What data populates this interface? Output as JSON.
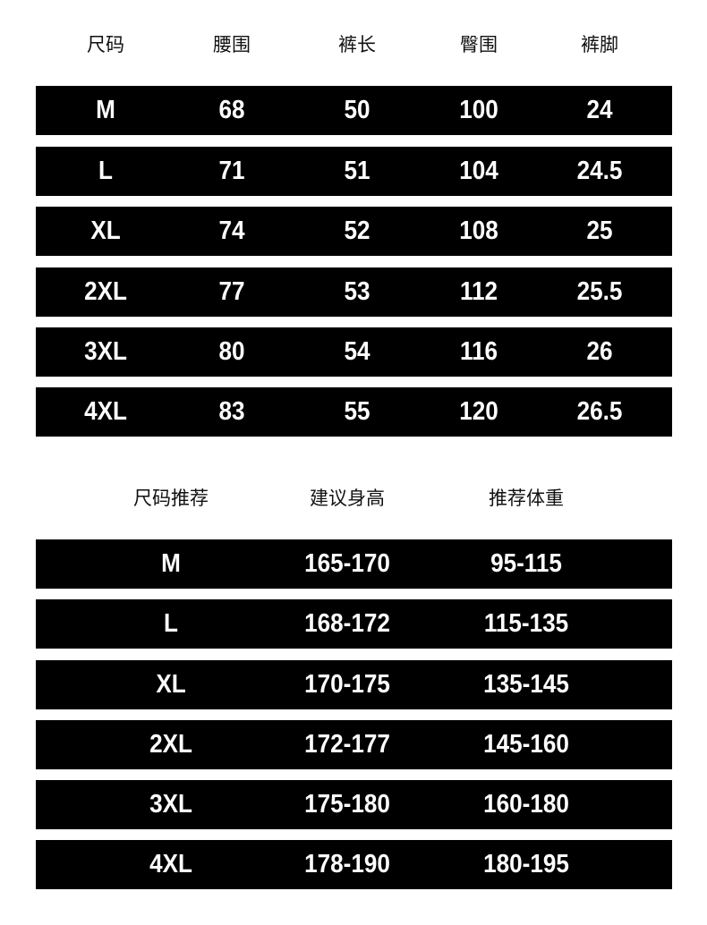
{
  "size_table": {
    "headers": [
      "尺码",
      "腰围",
      "裤长",
      "臀围",
      "裤脚"
    ],
    "rows": [
      [
        "M",
        "68",
        "50",
        "100",
        "24"
      ],
      [
        "L",
        "71",
        "51",
        "104",
        "24.5"
      ],
      [
        "XL",
        "74",
        "52",
        "108",
        "25"
      ],
      [
        "2XL",
        "77",
        "53",
        "112",
        "25.5"
      ],
      [
        "3XL",
        "80",
        "54",
        "116",
        "26"
      ],
      [
        "4XL",
        "83",
        "55",
        "120",
        "26.5"
      ]
    ]
  },
  "recommend_table": {
    "headers": [
      "尺码推荐",
      "建议身高",
      "推荐体重"
    ],
    "rows": [
      [
        "M",
        "165-170",
        "95-115"
      ],
      [
        "L",
        "168-172",
        "115-135"
      ],
      [
        "XL",
        "170-175",
        "135-145"
      ],
      [
        "2XL",
        "172-177",
        "145-160"
      ],
      [
        "3XL",
        "175-180",
        "160-180"
      ],
      [
        "4XL",
        "178-190",
        "180-195"
      ]
    ]
  }
}
